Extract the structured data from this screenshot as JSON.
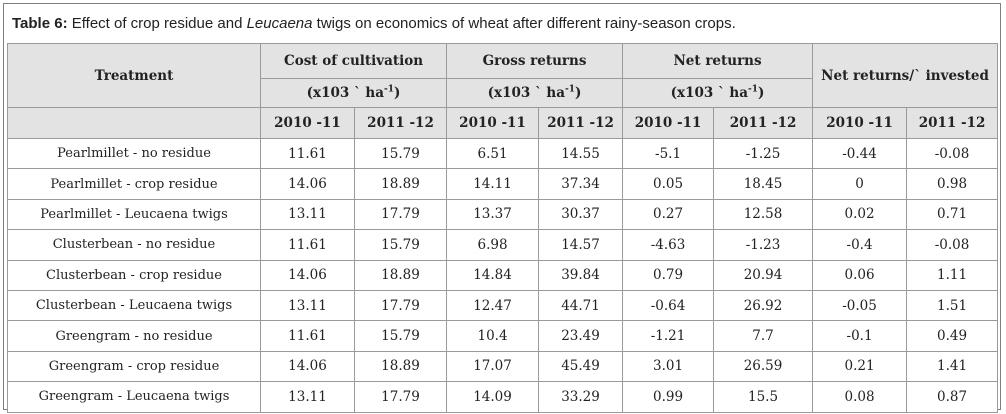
{
  "caption": {
    "label": "Table 6:",
    "text_before": " Effect of crop residue and ",
    "text_italic": "Leucaena",
    "text_after": " twigs on economics of wheat after different rainy-season crops."
  },
  "table": {
    "treatment_header": "Treatment",
    "groups": [
      {
        "title": "Cost of cultivation",
        "unit_prefix": "(x103 ` ha",
        "unit_sup": "-1",
        "unit_suffix": ")"
      },
      {
        "title": "Gross returns",
        "unit_prefix": "(x103 ` ha",
        "unit_sup": "-1",
        "unit_suffix": ")"
      },
      {
        "title": "Net returns",
        "unit_prefix": "(x103 ` ha",
        "unit_sup": "-1",
        "unit_suffix": ")"
      },
      {
        "title": "Net returns/` invested"
      }
    ],
    "years": [
      "2010 -11",
      "2011 -12"
    ],
    "rows": [
      {
        "treatment": "Pearlmillet - no residue",
        "values": [
          "11.61",
          "15.79",
          "6.51",
          "14.55",
          "-5.1",
          "-1.25",
          "-0.44",
          "-0.08"
        ]
      },
      {
        "treatment": "Pearlmillet - crop residue",
        "values": [
          "14.06",
          "18.89",
          "14.11",
          "37.34",
          "0.05",
          "18.45",
          "0",
          "0.98"
        ]
      },
      {
        "treatment": "Pearlmillet - Leucaena twigs",
        "values": [
          "13.11",
          "17.79",
          "13.37",
          "30.37",
          "0.27",
          "12.58",
          "0.02",
          "0.71"
        ]
      },
      {
        "treatment": "Clusterbean - no residue",
        "values": [
          "11.61",
          "15.79",
          "6.98",
          "14.57",
          "-4.63",
          "-1.23",
          "-0.4",
          "-0.08"
        ]
      },
      {
        "treatment": "Clusterbean - crop residue",
        "values": [
          "14.06",
          "18.89",
          "14.84",
          "39.84",
          "0.79",
          "20.94",
          "0.06",
          "1.11"
        ]
      },
      {
        "treatment": "Clusterbean - Leucaena twigs",
        "values": [
          "13.11",
          "17.79",
          "12.47",
          "44.71",
          "-0.64",
          "26.92",
          "-0.05",
          "1.51"
        ]
      },
      {
        "treatment": "Greengram - no residue",
        "values": [
          "11.61",
          "15.79",
          "10.4",
          "23.49",
          "-1.21",
          "7.7",
          "-0.1",
          "0.49"
        ]
      },
      {
        "treatment": "Greengram - crop residue",
        "values": [
          "14.06",
          "18.89",
          "17.07",
          "45.49",
          "3.01",
          "26.59",
          "0.21",
          "1.41"
        ]
      },
      {
        "treatment": "Greengram - Leucaena twigs",
        "values": [
          "13.11",
          "17.79",
          "14.09",
          "33.29",
          "0.99",
          "15.5",
          "0.08",
          "0.87"
        ]
      }
    ]
  }
}
